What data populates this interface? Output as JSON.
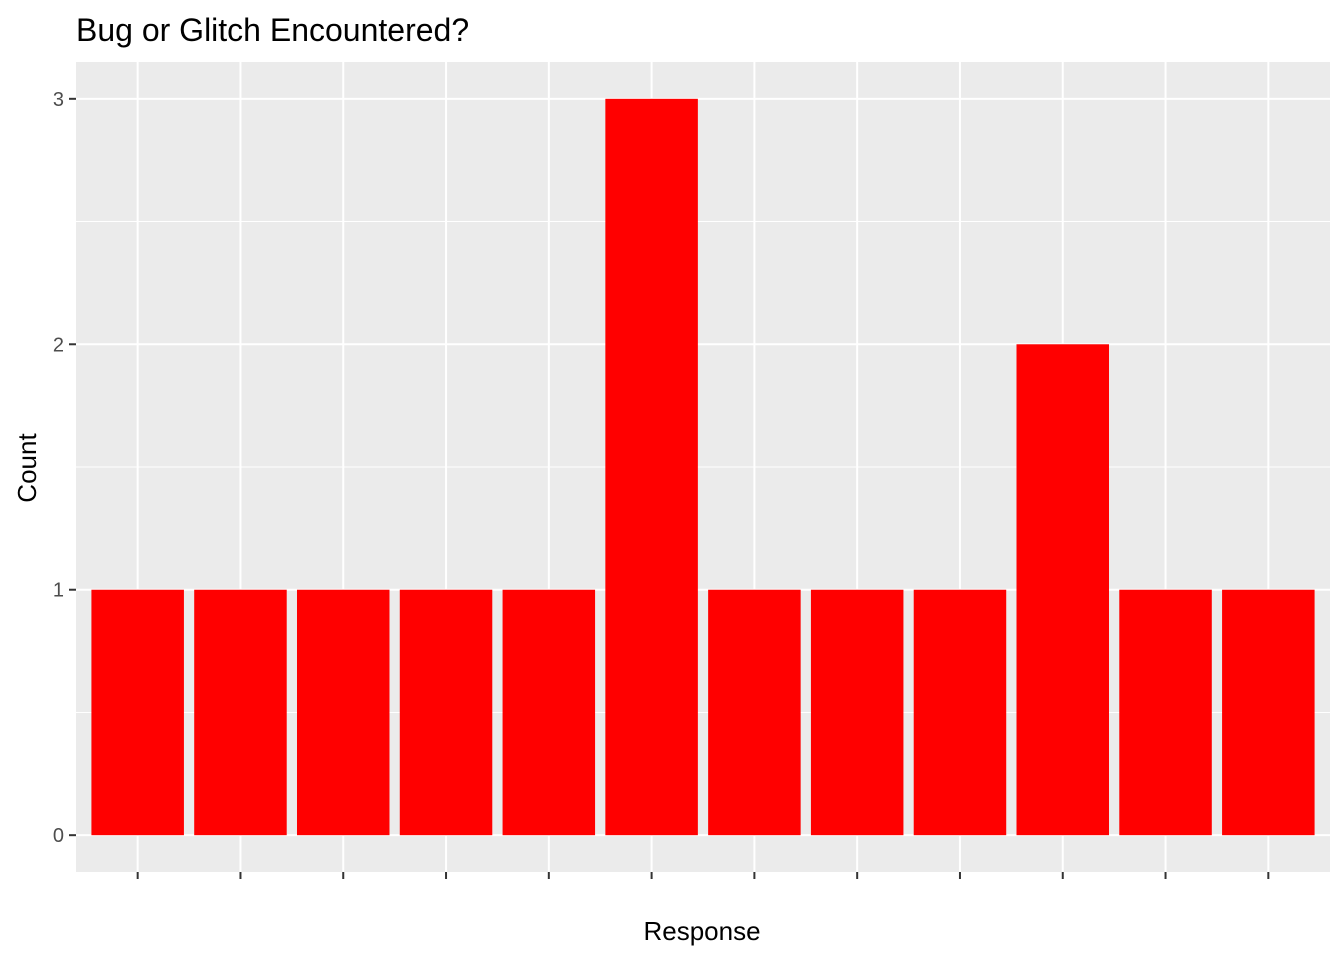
{
  "chart_data": {
    "type": "bar",
    "title": "Bug or Glitch Encountered?",
    "xlabel": "Response",
    "ylabel": "Count",
    "categories": [
      "",
      "",
      "",
      "",
      "",
      "",
      "",
      "",
      "",
      "",
      "",
      ""
    ],
    "values": [
      1,
      1,
      1,
      1,
      1,
      3,
      1,
      1,
      1,
      2,
      1,
      1
    ],
    "ylim": [
      0,
      3.15
    ],
    "yticks": [
      0,
      1,
      2,
      3
    ],
    "grid": true,
    "legend": "none",
    "colors": {
      "bar": "#ff0000",
      "panel": "#ebebeb",
      "grid": "#ffffff"
    }
  }
}
